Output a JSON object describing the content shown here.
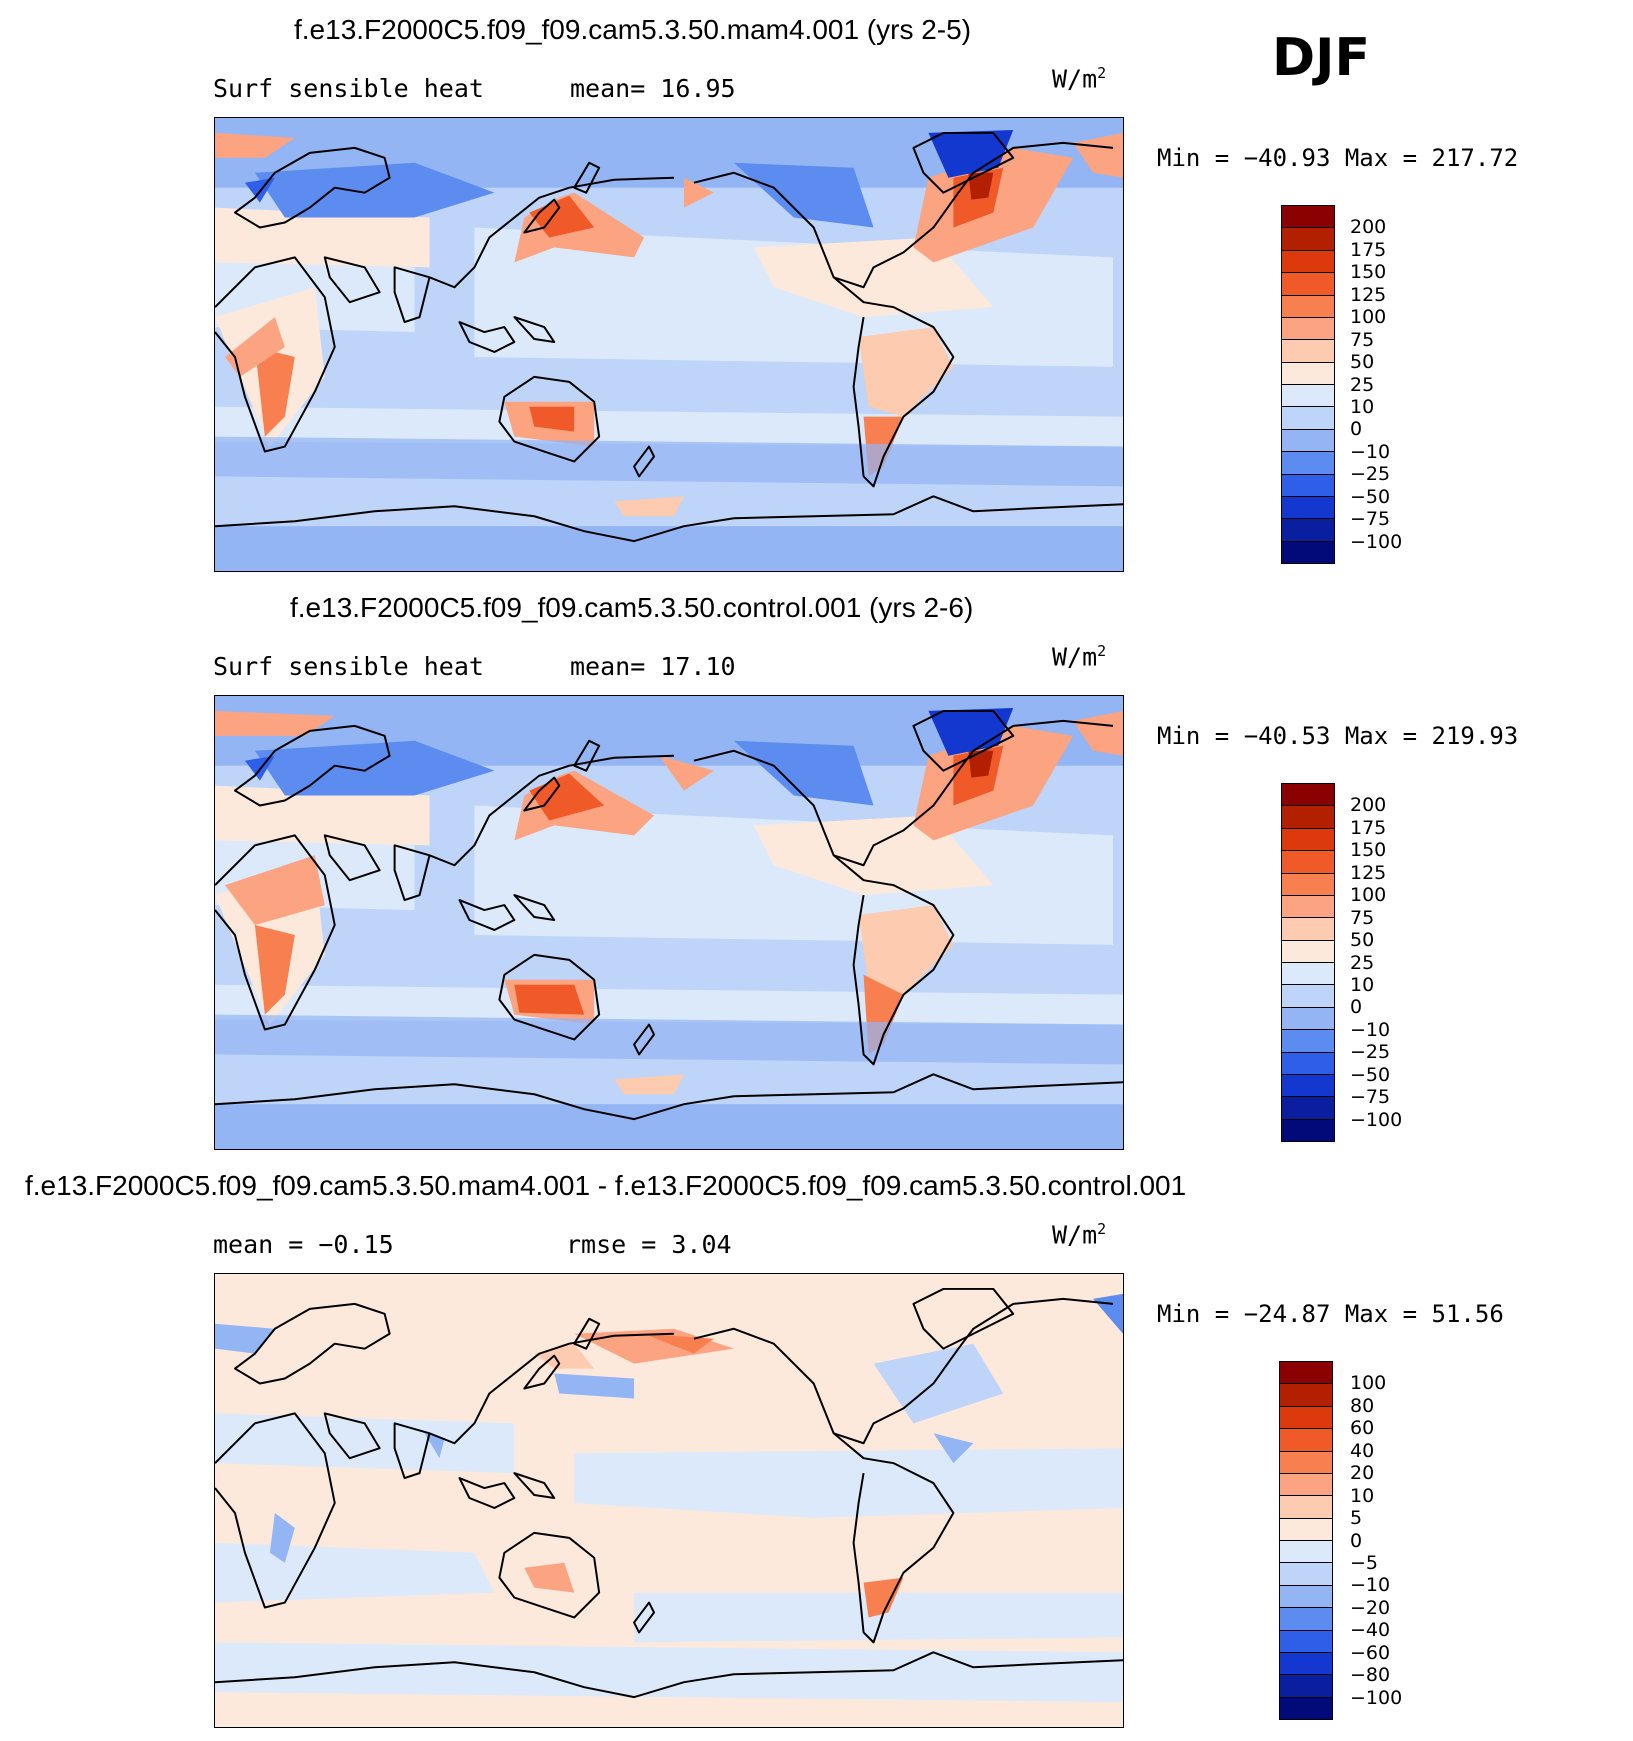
{
  "season": "DJF",
  "units": {
    "base": "W/m",
    "sup": "2"
  },
  "panels": [
    {
      "title": "f.e13.F2000C5.f09_f09.cam5.3.50.mam4.001 (yrs 2-5)",
      "left_label": "Surf sensible heat",
      "right_label": "mean=  16.95",
      "minmax": "Min = −40.93 Max = 217.72"
    },
    {
      "title": "f.e13.F2000C5.f09_f09.cam5.3.50.control.001 (yrs 2-6)",
      "left_label": "Surf sensible heat",
      "right_label": "mean=  17.10",
      "minmax": "Min = −40.53 Max = 219.93"
    },
    {
      "title": "f.e13.F2000C5.f09_f09.cam5.3.50.mam4.001 - f.e13.F2000C5.f09_f09.cam5.3.50.control.001",
      "left_label": "mean =  −0.15",
      "right_label": "rmse =   3.04",
      "minmax": "Min = −24.87 Max =  51.56"
    }
  ],
  "colorbars": {
    "field": {
      "levels": [
        "200",
        "175",
        "150",
        "125",
        "100",
        "75",
        "50",
        "25",
        "10",
        "0",
        "−10",
        "−25",
        "−50",
        "−75",
        "−100"
      ],
      "colors": [
        "#8b0000",
        "#b22000",
        "#dc3a0c",
        "#f05a28",
        "#f77f50",
        "#fca382",
        "#fdcbb0",
        "#fde9dc",
        "#dce9fb",
        "#bed4f8",
        "#93b5f3",
        "#5c8cf0",
        "#2f5ee8",
        "#1338d0",
        "#0a1fa0",
        "#000a78"
      ]
    },
    "diff": {
      "levels": [
        "100",
        "80",
        "60",
        "40",
        "20",
        "10",
        "5",
        "0",
        "−5",
        "−10",
        "−20",
        "−40",
        "−60",
        "−80",
        "−100"
      ],
      "colors": [
        "#8b0000",
        "#b22000",
        "#dc3a0c",
        "#f05a28",
        "#f77f50",
        "#fca382",
        "#fdcbb0",
        "#fde9dc",
        "#dce9fb",
        "#bed4f8",
        "#93b5f3",
        "#5c8cf0",
        "#2f5ee8",
        "#1338d0",
        "#0a1fa0",
        "#000a78"
      ]
    }
  }
}
